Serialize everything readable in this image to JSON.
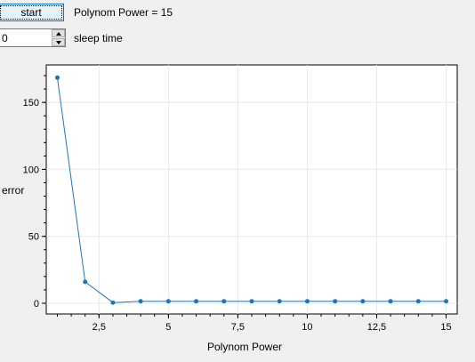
{
  "controls": {
    "start_label": "start",
    "power_label": "Polynom Power = 15",
    "sleep_value": "0",
    "sleep_label": "sleep time"
  },
  "chart_data": {
    "type": "line",
    "title": "",
    "xlabel": "Polynom Power",
    "ylabel": "error",
    "xlim": [
      0.6,
      15.4
    ],
    "ylim": [
      -8,
      178
    ],
    "x_ticks": [
      "2,5",
      "5",
      "7,5",
      "10",
      "12,5",
      "15"
    ],
    "y_ticks": [
      "0",
      "50",
      "100",
      "150"
    ],
    "grid": true,
    "series": [
      {
        "color": "#1f77b4",
        "x": [
          1,
          2,
          3,
          4,
          5,
          6,
          7,
          8,
          9,
          10,
          11,
          12,
          13,
          14,
          15
        ],
        "y": [
          168.5,
          16,
          0.5,
          1.5,
          1.5,
          1.5,
          1.5,
          1.5,
          1.5,
          1.5,
          1.5,
          1.5,
          1.5,
          1.5,
          1.5
        ]
      }
    ]
  }
}
